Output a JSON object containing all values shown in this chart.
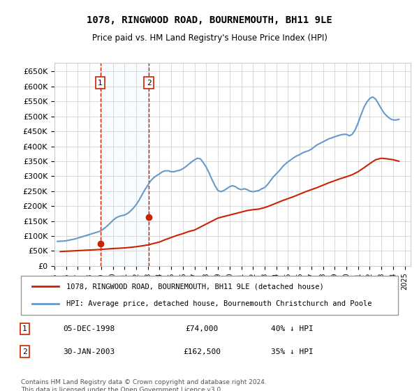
{
  "title": "1078, RINGWOOD ROAD, BOURNEMOUTH, BH11 9LE",
  "subtitle": "Price paid vs. HM Land Registry's House Price Index (HPI)",
  "ylabel": "",
  "xlim_start": 1995.0,
  "xlim_end": 2025.5,
  "ylim": [
    0,
    680000
  ],
  "yticks": [
    0,
    50000,
    100000,
    150000,
    200000,
    250000,
    300000,
    350000,
    400000,
    450000,
    500000,
    550000,
    600000,
    650000
  ],
  "ytick_labels": [
    "£0",
    "£50K",
    "£100K",
    "£150K",
    "£200K",
    "£250K",
    "£300K",
    "£350K",
    "£400K",
    "£450K",
    "£500K",
    "£550K",
    "£600K",
    "£650K"
  ],
  "sale1": {
    "date_num": 1998.92,
    "price": 74000,
    "label": "1",
    "date_str": "05-DEC-1998",
    "pct": "40%"
  },
  "sale2": {
    "date_num": 2003.08,
    "price": 162500,
    "label": "2",
    "date_str": "30-JAN-2003",
    "pct": "35%"
  },
  "hpi_color": "#6699cc",
  "price_color": "#cc2200",
  "sale_dot_color": "#cc2200",
  "sale_line_color": "#cc2200",
  "sale_fill_color": "#ddeeff",
  "grid_color": "#cccccc",
  "background_color": "#ffffff",
  "legend_label_price": "1078, RINGWOOD ROAD, BOURNEMOUTH, BH11 9LE (detached house)",
  "legend_label_hpi": "HPI: Average price, detached house, Bournemouth Christchurch and Poole",
  "footnote": "Contains HM Land Registry data © Crown copyright and database right 2024.\nThis data is licensed under the Open Government Licence v3.0.",
  "hpi_data": {
    "years": [
      1995.25,
      1995.5,
      1995.75,
      1996.0,
      1996.25,
      1996.5,
      1996.75,
      1997.0,
      1997.25,
      1997.5,
      1997.75,
      1998.0,
      1998.25,
      1998.5,
      1998.75,
      1999.0,
      1999.25,
      1999.5,
      1999.75,
      2000.0,
      2000.25,
      2000.5,
      2000.75,
      2001.0,
      2001.25,
      2001.5,
      2001.75,
      2002.0,
      2002.25,
      2002.5,
      2002.75,
      2003.0,
      2003.25,
      2003.5,
      2003.75,
      2004.0,
      2004.25,
      2004.5,
      2004.75,
      2005.0,
      2005.25,
      2005.5,
      2005.75,
      2006.0,
      2006.25,
      2006.5,
      2006.75,
      2007.0,
      2007.25,
      2007.5,
      2007.75,
      2008.0,
      2008.25,
      2008.5,
      2008.75,
      2009.0,
      2009.25,
      2009.5,
      2009.75,
      2010.0,
      2010.25,
      2010.5,
      2010.75,
      2011.0,
      2011.25,
      2011.5,
      2011.75,
      2012.0,
      2012.25,
      2012.5,
      2012.75,
      2013.0,
      2013.25,
      2013.5,
      2013.75,
      2014.0,
      2014.25,
      2014.5,
      2014.75,
      2015.0,
      2015.25,
      2015.5,
      2015.75,
      2016.0,
      2016.25,
      2016.5,
      2016.75,
      2017.0,
      2017.25,
      2017.5,
      2017.75,
      2018.0,
      2018.25,
      2018.5,
      2018.75,
      2019.0,
      2019.25,
      2019.5,
      2019.75,
      2020.0,
      2020.25,
      2020.5,
      2020.75,
      2021.0,
      2021.25,
      2021.5,
      2021.75,
      2022.0,
      2022.25,
      2022.5,
      2022.75,
      2023.0,
      2023.25,
      2023.5,
      2023.75,
      2024.0,
      2024.25,
      2024.5
    ],
    "values": [
      82000,
      82500,
      83000,
      84000,
      86000,
      88000,
      90000,
      93000,
      96000,
      99000,
      102000,
      105000,
      108000,
      111000,
      114000,
      118000,
      125000,
      133000,
      142000,
      152000,
      160000,
      165000,
      168000,
      170000,
      175000,
      183000,
      193000,
      205000,
      220000,
      238000,
      255000,
      270000,
      285000,
      295000,
      302000,
      308000,
      315000,
      318000,
      318000,
      315000,
      315000,
      318000,
      320000,
      325000,
      332000,
      340000,
      348000,
      355000,
      360000,
      358000,
      345000,
      330000,
      310000,
      288000,
      268000,
      252000,
      248000,
      252000,
      258000,
      265000,
      268000,
      265000,
      258000,
      255000,
      258000,
      255000,
      250000,
      248000,
      250000,
      252000,
      258000,
      262000,
      272000,
      285000,
      298000,
      308000,
      318000,
      330000,
      340000,
      348000,
      355000,
      362000,
      368000,
      372000,
      378000,
      382000,
      385000,
      390000,
      398000,
      405000,
      410000,
      415000,
      420000,
      425000,
      428000,
      432000,
      435000,
      438000,
      440000,
      440000,
      435000,
      440000,
      455000,
      478000,
      505000,
      530000,
      548000,
      560000,
      565000,
      558000,
      542000,
      525000,
      510000,
      500000,
      492000,
      488000,
      488000,
      490000
    ]
  },
  "price_data": {
    "years": [
      1995.5,
      1996.0,
      1996.5,
      1997.0,
      1997.5,
      1998.0,
      1998.5,
      1999.0,
      1999.5,
      2000.0,
      2000.5,
      2001.0,
      2001.5,
      2002.0,
      2002.5,
      2003.0,
      2003.5,
      2004.0,
      2004.5,
      2005.0,
      2005.5,
      2006.0,
      2006.5,
      2007.0,
      2007.5,
      2008.0,
      2008.5,
      2009.0,
      2009.5,
      2010.0,
      2010.5,
      2011.0,
      2011.5,
      2012.0,
      2012.5,
      2013.0,
      2013.5,
      2014.0,
      2014.5,
      2015.0,
      2015.5,
      2016.0,
      2016.5,
      2017.0,
      2017.5,
      2018.0,
      2018.5,
      2019.0,
      2019.5,
      2020.0,
      2020.5,
      2021.0,
      2021.5,
      2022.0,
      2022.5,
      2023.0,
      2023.5,
      2024.0,
      2024.5
    ],
    "values": [
      48000,
      49000,
      50000,
      51000,
      52000,
      53000,
      54000,
      55000,
      56500,
      58000,
      59000,
      60000,
      62000,
      64000,
      67000,
      70000,
      75000,
      80000,
      88000,
      95000,
      102000,
      108000,
      115000,
      120000,
      130000,
      140000,
      150000,
      160000,
      165000,
      170000,
      175000,
      180000,
      185000,
      188000,
      190000,
      195000,
      202000,
      210000,
      218000,
      225000,
      232000,
      240000,
      248000,
      255000,
      262000,
      270000,
      278000,
      285000,
      292000,
      298000,
      305000,
      315000,
      328000,
      342000,
      355000,
      360000,
      358000,
      355000,
      350000
    ]
  }
}
